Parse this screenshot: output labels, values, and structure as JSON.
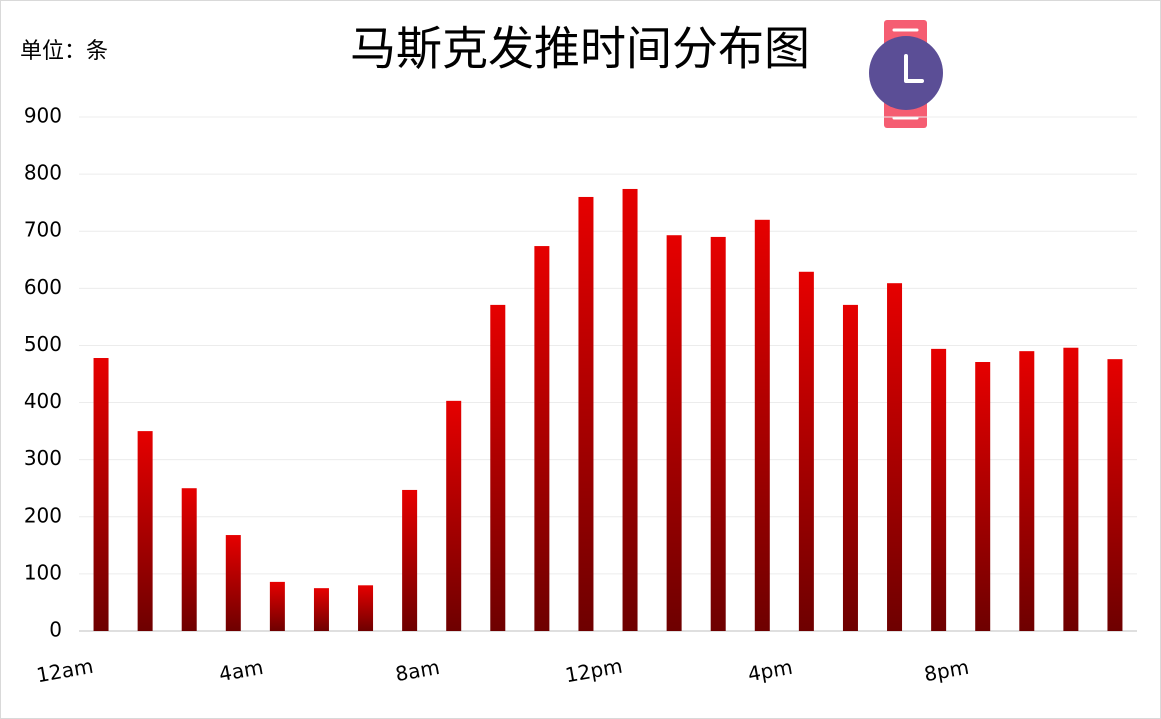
{
  "chart_data": {
    "type": "bar",
    "title": "马斯克发推时间分布图",
    "unit_label": "单位：条",
    "categories": [
      "12am",
      null,
      null,
      null,
      "4am",
      null,
      null,
      null,
      "8am",
      null,
      null,
      null,
      "12pm",
      null,
      null,
      null,
      "4pm",
      null,
      null,
      null,
      "8pm",
      null,
      null,
      null
    ],
    "values": [
      478,
      350,
      250,
      168,
      86,
      75,
      80,
      247,
      403,
      571,
      674,
      760,
      774,
      693,
      690,
      720,
      629,
      571,
      609,
      494,
      471,
      490,
      496,
      476
    ],
    "color": "#e60000",
    "ylim": [
      0,
      900
    ],
    "yticks": [
      0,
      100,
      200,
      300,
      400,
      500,
      600,
      700,
      800,
      900
    ],
    "grid": true
  }
}
